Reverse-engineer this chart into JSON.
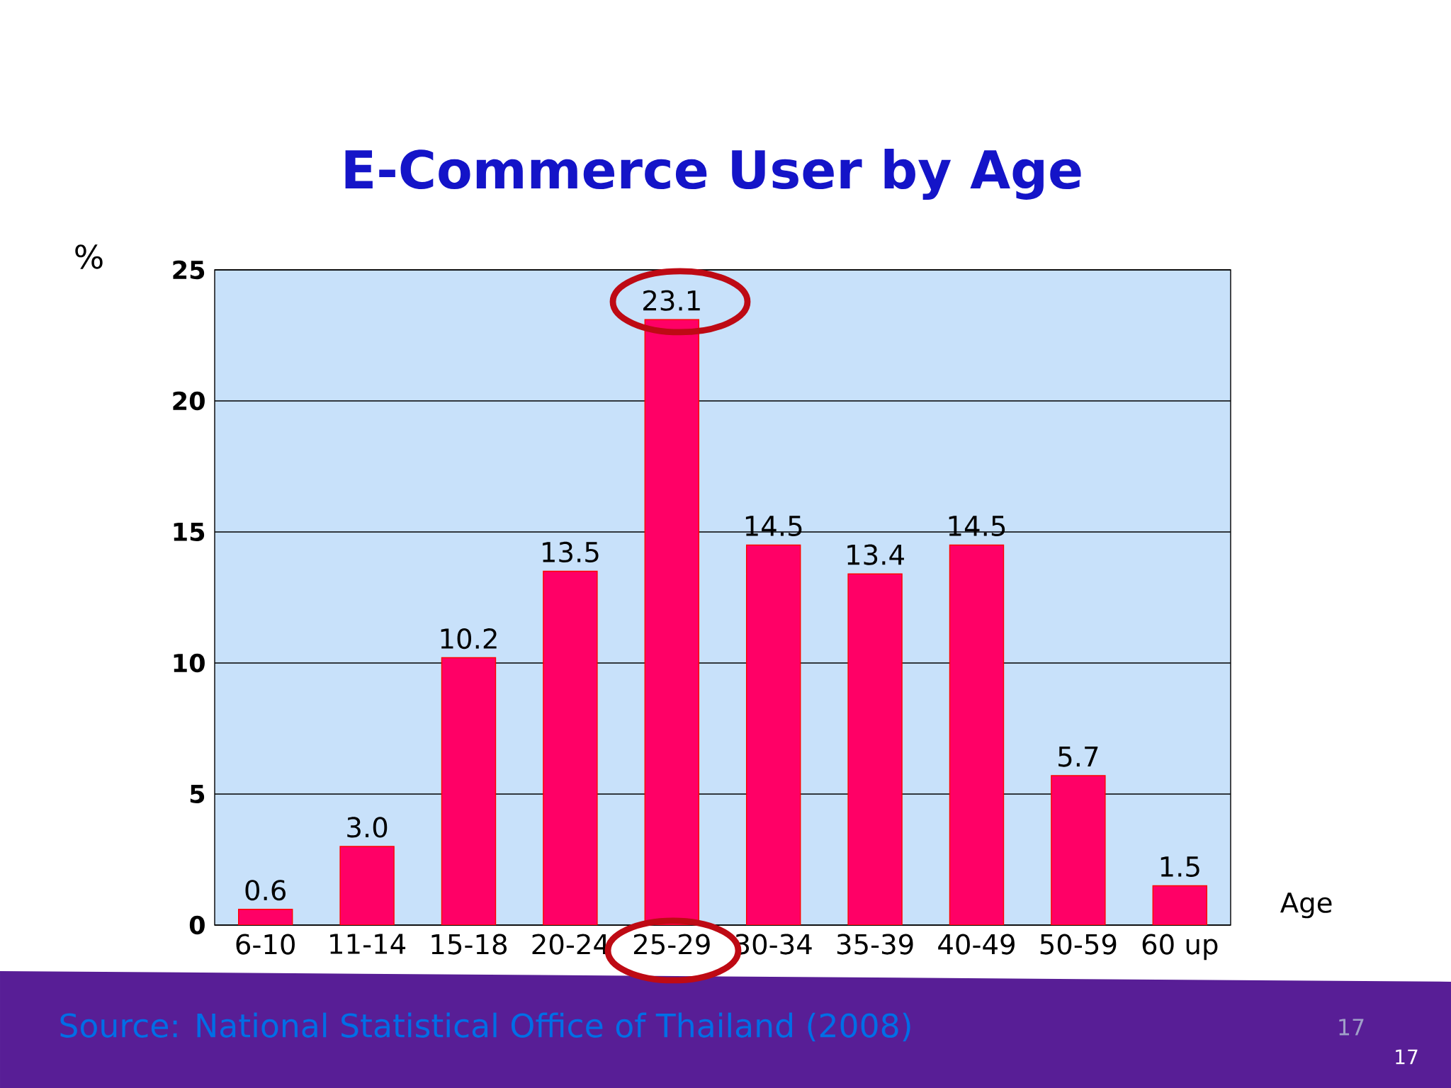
{
  "chart_data": {
    "type": "bar",
    "title": "E-Commerce User by Age",
    "ylabel": "%",
    "xlabel": "Age",
    "categories": [
      "6-10",
      "11-14",
      "15-18",
      "20-24",
      "25-29",
      "30-34",
      "35-39",
      "40-49",
      "50-59",
      "60 up"
    ],
    "values": [
      0.6,
      3.0,
      10.2,
      13.5,
      23.1,
      14.5,
      13.4,
      14.5,
      5.7,
      1.5
    ],
    "value_labels": [
      "0.6",
      "3.0",
      "10.2",
      "13.5",
      "23.1",
      "14.5",
      "13.4",
      "14.5",
      "5.7",
      "1.5"
    ],
    "color": "#ff0066",
    "ylim": [
      0,
      25
    ],
    "yticks": [
      0,
      5,
      10,
      15,
      20,
      25
    ],
    "grid": "y",
    "annotations": [
      "Source: National Statistical Office of Thailand (2008)",
      "17",
      "17"
    ]
  }
}
